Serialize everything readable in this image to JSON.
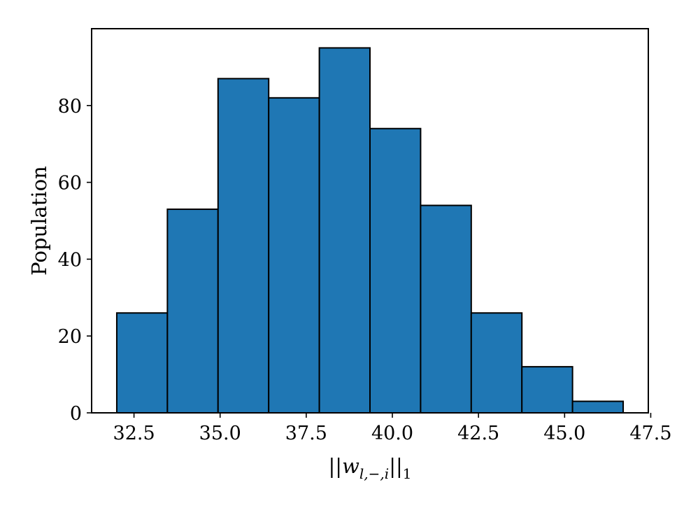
{
  "chart_data": {
    "type": "bar",
    "subtype": "histogram",
    "bin_edges": [
      32.0,
      33.47,
      34.94,
      36.41,
      37.88,
      39.35,
      40.82,
      42.29,
      43.76,
      45.23,
      46.7
    ],
    "values": [
      26,
      53,
      87,
      82,
      95,
      74,
      54,
      26,
      12,
      3
    ],
    "xlabel": "||w_{l,-,i}||_1",
    "ylabel": "Population",
    "xlim": [
      31.27,
      47.43
    ],
    "ylim": [
      0,
      100
    ],
    "xticks": [
      32.5,
      35.0,
      37.5,
      40.0,
      42.5,
      45.0,
      47.5
    ],
    "xtick_labels": [
      "32.5",
      "35.0",
      "37.5",
      "40.0",
      "42.5",
      "45.0",
      "47.5"
    ],
    "yticks": [
      0,
      20,
      40,
      60,
      80
    ],
    "ytick_labels": [
      "0",
      "20",
      "40",
      "60",
      "80"
    ],
    "bar_color": "#1f77b4",
    "edge_color": "#000000",
    "grid": false,
    "legend": "none"
  }
}
